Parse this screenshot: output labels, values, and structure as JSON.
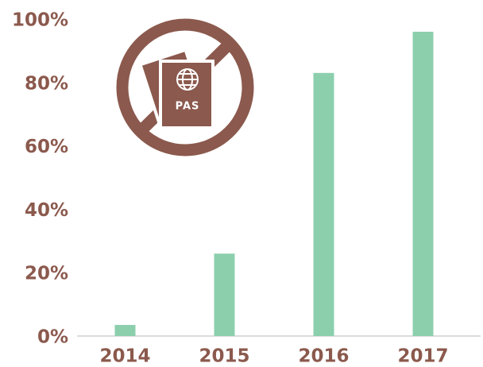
{
  "chart_data": {
    "type": "bar",
    "categories": [
      "2014",
      "2015",
      "2016",
      "2017"
    ],
    "values": [
      3.5,
      26,
      83,
      96
    ],
    "color": "#8ccfad",
    "ylim": [
      0,
      100
    ],
    "yticks": [
      {
        "value": 0,
        "label": "0%"
      },
      {
        "value": 20,
        "label": "20%"
      },
      {
        "value": 40,
        "label": "40%"
      },
      {
        "value": 60,
        "label": "60%"
      },
      {
        "value": 80,
        "label": "80%"
      },
      {
        "value": 100,
        "label": "100%"
      }
    ],
    "grid": false,
    "annotation": "PAS"
  }
}
